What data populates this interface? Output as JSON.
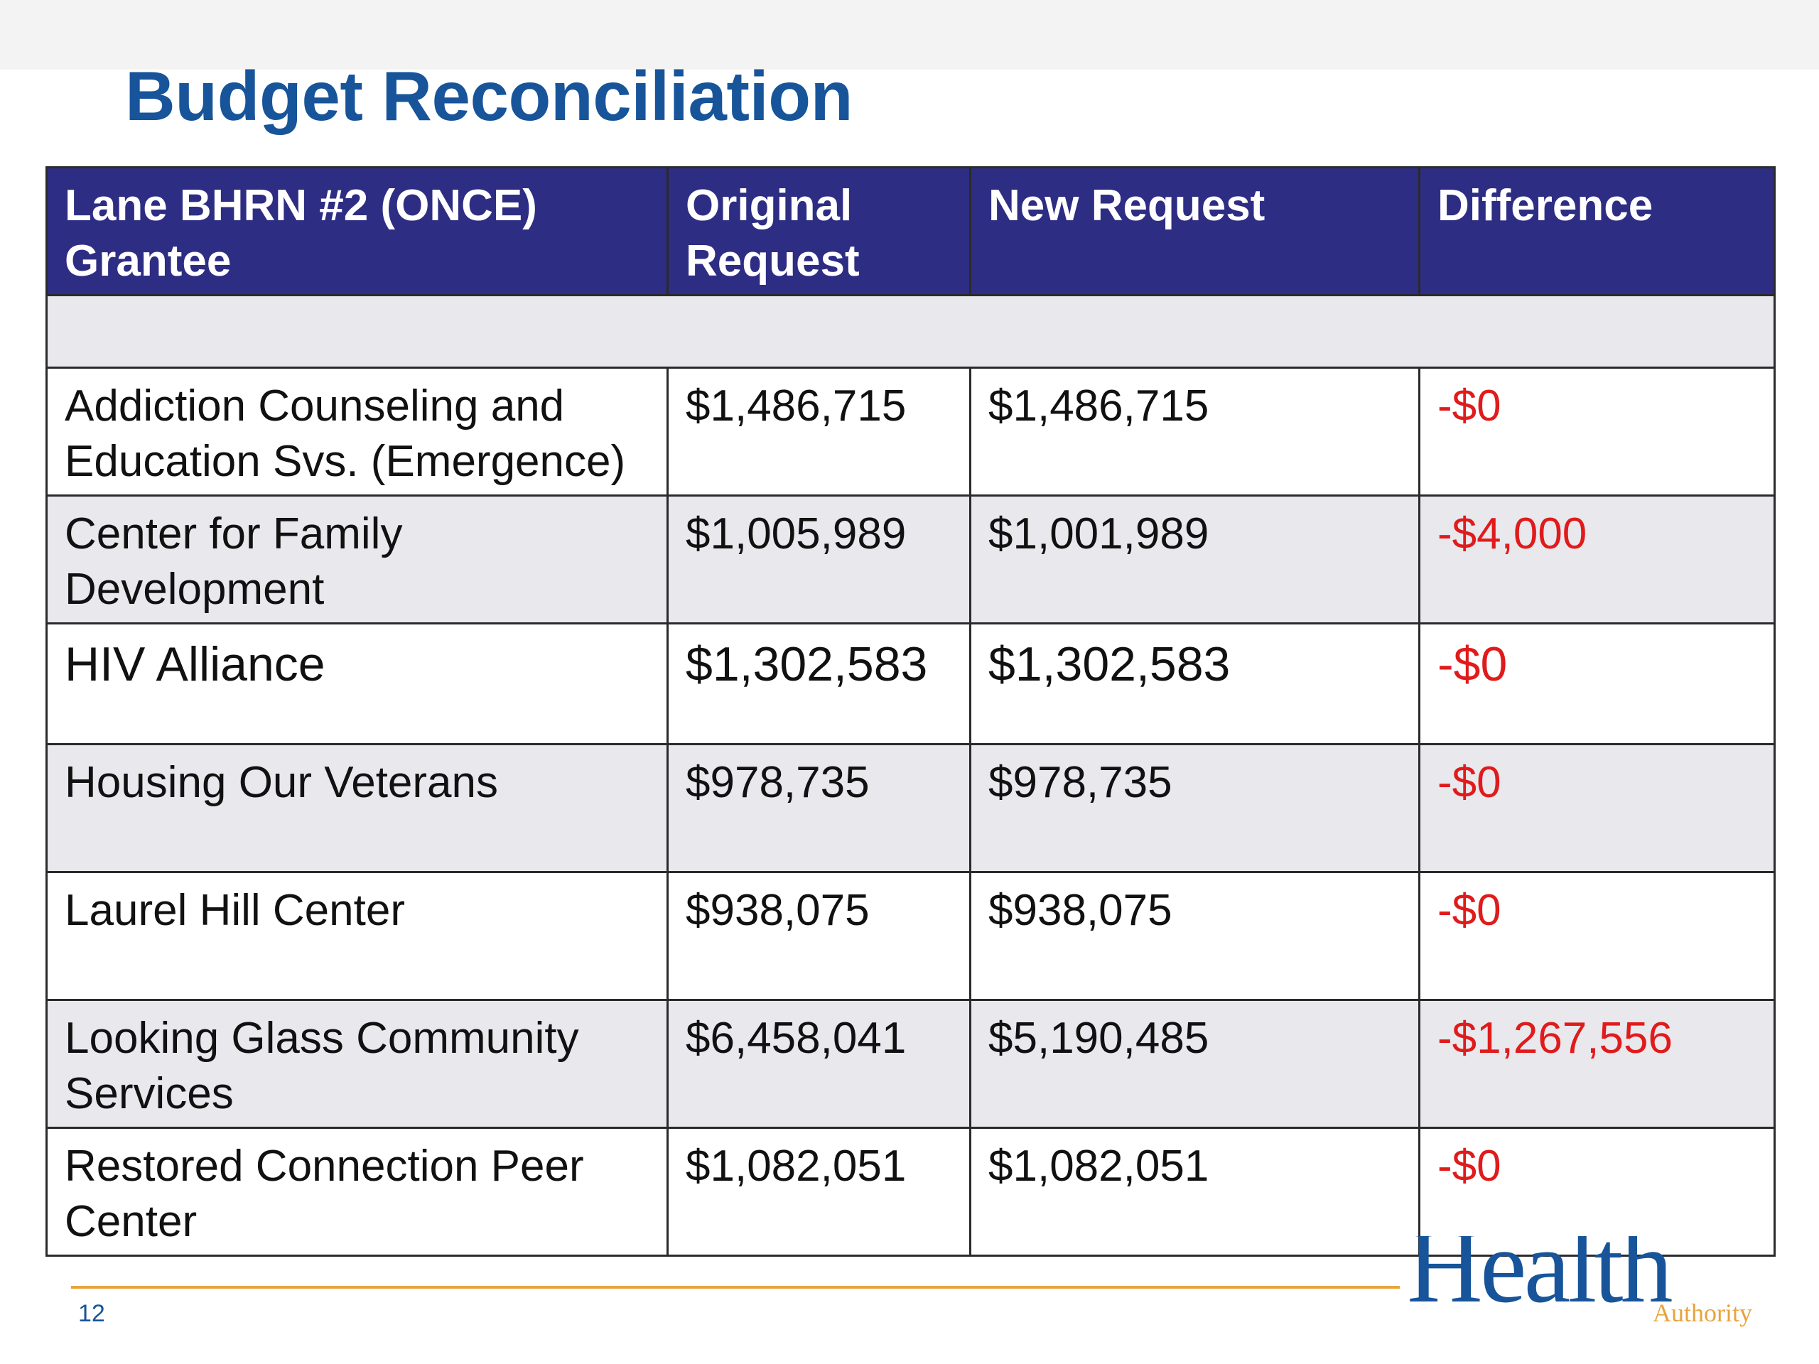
{
  "slide": {
    "title": "Budget Reconciliation",
    "page_number": "12"
  },
  "logo": {
    "word": "Health",
    "subword": "Authority",
    "colors": {
      "word": "#17549a",
      "subword": "#e8a33c"
    }
  },
  "table": {
    "headers": {
      "grantee": "Lane BHRN #2 (ONCE) Grantee",
      "original": "Original Request",
      "new": "New Request",
      "difference": "Difference"
    },
    "rows": [
      {
        "grantee": "Addiction Counseling and Education Svs. (Emergence)",
        "original": "$1,486,715",
        "new": "$1,486,715",
        "difference": "-$0"
      },
      {
        "grantee": "Center for Family Development",
        "original": "$1,005,989",
        "new": "$1,001,989",
        "difference": "-$4,000"
      },
      {
        "grantee": "HIV Alliance",
        "original": "$1,302,583",
        "new": "$1,302,583",
        "difference": "-$0"
      },
      {
        "grantee": "Housing Our Veterans",
        "original": "$978,735",
        "new": "$978,735",
        "difference": "-$0"
      },
      {
        "grantee": "Laurel Hill Center",
        "original": "$938,075",
        "new": "$938,075",
        "difference": "-$0"
      },
      {
        "grantee": "Looking Glass Community Services",
        "original": "$6,458,041",
        "new": "$5,190,485",
        "difference": "-$1,267,556"
      },
      {
        "grantee": "Restored Connection Peer Center",
        "original": "$1,082,051",
        "new": "$1,082,051",
        "difference": "-$0"
      }
    ]
  },
  "colors": {
    "title": "#17549a",
    "header_bg": "#2e2d84",
    "header_text": "#ffffff",
    "row_shade": "#e8e8ed",
    "difference_text": "#e01b1b",
    "footer_rule": "#e8a33c"
  }
}
